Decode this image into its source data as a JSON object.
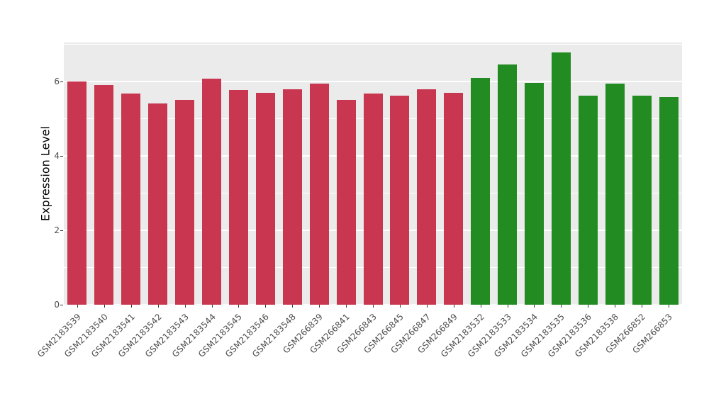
{
  "chart_data": {
    "type": "bar",
    "title": "",
    "xlabel": "",
    "ylabel": "Expression Level",
    "ylim": [
      0,
      7.05
    ],
    "yticks": [
      0,
      2,
      4,
      6
    ],
    "yticks_minor": [
      1,
      3,
      5,
      7
    ],
    "grid": "on",
    "legend": "none",
    "panel_background": "#EBEBEB",
    "gridline_color": "#FFFFFF",
    "categories": [
      "GSM2183539",
      "GSM2183540",
      "GSM2183541",
      "GSM2183542",
      "GSM2183543",
      "GSM2183544",
      "GSM2183545",
      "GSM2183546",
      "GSM2183548",
      "GSM266839",
      "GSM266841",
      "GSM266843",
      "GSM266845",
      "GSM266847",
      "GSM266849",
      "GSM2183532",
      "GSM2183533",
      "GSM2183534",
      "GSM2183535",
      "GSM2183536",
      "GSM2183538",
      "GSM266852",
      "GSM266853"
    ],
    "values": [
      6.0,
      5.9,
      5.67,
      5.42,
      5.5,
      6.07,
      5.77,
      5.7,
      5.8,
      5.95,
      5.5,
      5.67,
      5.62,
      5.8,
      5.7,
      6.1,
      6.45,
      5.97,
      6.78,
      5.62,
      5.95,
      5.62,
      5.58
    ],
    "groups": [
      {
        "name": "group-red",
        "color": "#C8374F",
        "count": 15
      },
      {
        "name": "group-green",
        "color": "#228B22",
        "count": 8
      }
    ]
  }
}
